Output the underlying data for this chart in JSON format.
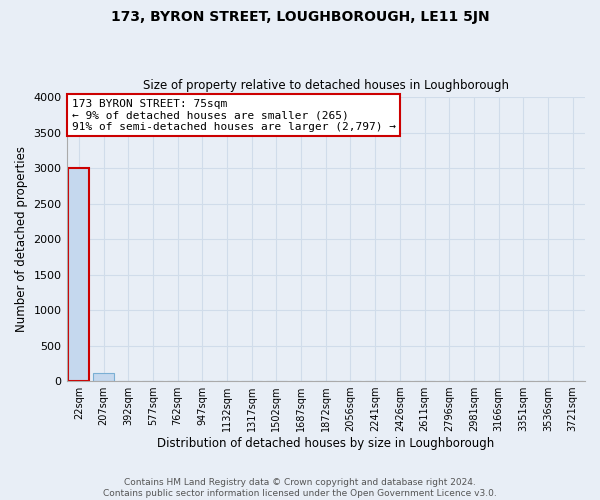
{
  "title": "173, BYRON STREET, LOUGHBOROUGH, LE11 5JN",
  "subtitle": "Size of property relative to detached houses in Loughborough",
  "xlabel": "Distribution of detached houses by size in Loughborough",
  "ylabel": "Number of detached properties",
  "bin_labels": [
    "22sqm",
    "207sqm",
    "392sqm",
    "577sqm",
    "762sqm",
    "947sqm",
    "1132sqm",
    "1317sqm",
    "1502sqm",
    "1687sqm",
    "1872sqm",
    "2056sqm",
    "2241sqm",
    "2426sqm",
    "2611sqm",
    "2796sqm",
    "2981sqm",
    "3166sqm",
    "3351sqm",
    "3536sqm",
    "3721sqm"
  ],
  "bar_values": [
    3000,
    115,
    0,
    0,
    0,
    0,
    0,
    0,
    0,
    0,
    0,
    0,
    0,
    0,
    0,
    0,
    0,
    0,
    0,
    0,
    0
  ],
  "bar_color": "#c5d8ee",
  "bar_edgecolor": "#7aafd4",
  "highlight_bar_index": 0,
  "highlight_bar_edgecolor": "#cc0000",
  "annotation_line1": "173 BYRON STREET: 75sqm",
  "annotation_line2": "← 9% of detached houses are smaller (265)",
  "annotation_line3": "91% of semi-detached houses are larger (2,797) →",
  "annotation_box_edgecolor": "#cc0000",
  "annotation_box_facecolor": "#ffffff",
  "ylim": [
    0,
    4000
  ],
  "yticks": [
    0,
    500,
    1000,
    1500,
    2000,
    2500,
    3000,
    3500,
    4000
  ],
  "grid_color": "#d0dcea",
  "background_color": "#e8eef6",
  "plot_background_color": "#e8eef6",
  "footer_line1": "Contains HM Land Registry data © Crown copyright and database right 2024.",
  "footer_line2": "Contains public sector information licensed under the Open Government Licence v3.0."
}
